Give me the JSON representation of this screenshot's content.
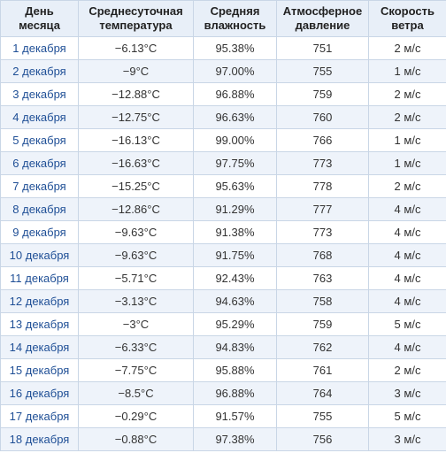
{
  "table": {
    "header": [
      "День\nмесяца",
      "Среднесуточная\nтемпература",
      "Средняя\nвлажность",
      "Атмосферное\nдавление",
      "Скорость\nветра"
    ],
    "rows": [
      [
        "1 декабря",
        "−6.13°C",
        "95.38%",
        "751",
        "2 м/с"
      ],
      [
        "2 декабря",
        "−9°C",
        "97.00%",
        "755",
        "1 м/с"
      ],
      [
        "3 декабря",
        "−12.88°C",
        "96.88%",
        "759",
        "2 м/с"
      ],
      [
        "4 декабря",
        "−12.75°C",
        "96.63%",
        "760",
        "2 м/с"
      ],
      [
        "5 декабря",
        "−16.13°C",
        "99.00%",
        "766",
        "1 м/с"
      ],
      [
        "6 декабря",
        "−16.63°C",
        "97.75%",
        "773",
        "1 м/с"
      ],
      [
        "7 декабря",
        "−15.25°C",
        "95.63%",
        "778",
        "2 м/с"
      ],
      [
        "8 декабря",
        "−12.86°C",
        "91.29%",
        "777",
        "4 м/с"
      ],
      [
        "9 декабря",
        "−9.63°C",
        "91.38%",
        "773",
        "4 м/с"
      ],
      [
        "10 декабря",
        "−9.63°C",
        "91.75%",
        "768",
        "4 м/с"
      ],
      [
        "11 декабря",
        "−5.71°C",
        "92.43%",
        "763",
        "4 м/с"
      ],
      [
        "12 декабря",
        "−3.13°C",
        "94.63%",
        "758",
        "4 м/с"
      ],
      [
        "13 декабря",
        "−3°C",
        "95.29%",
        "759",
        "5 м/с"
      ],
      [
        "14 декабря",
        "−6.33°C",
        "94.83%",
        "762",
        "4 м/с"
      ],
      [
        "15 декабря",
        "−7.75°C",
        "95.88%",
        "761",
        "2 м/с"
      ],
      [
        "16 декабря",
        "−8.5°C",
        "96.88%",
        "764",
        "3 м/с"
      ],
      [
        "17 декабря",
        "−0.29°C",
        "91.57%",
        "755",
        "5 м/с"
      ],
      [
        "18 декабря",
        "−0.88°C",
        "97.38%",
        "756",
        "3 м/с"
      ]
    ]
  }
}
